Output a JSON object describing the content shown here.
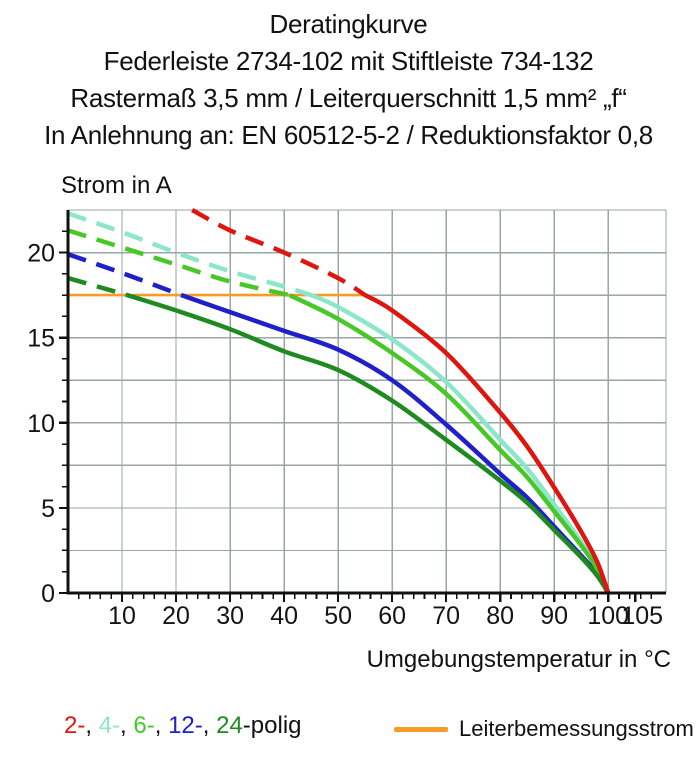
{
  "title": {
    "lines": [
      "Deratingkurve",
      "Federleiste 2734-102 mit Stiftleiste 734-132",
      "Rastermaß 3,5 mm / Leiterquerschnitt 1,5 mm² „f“",
      "In Anlehnung an: EN 60512-5-2 / Reduktionsfaktor 0,8"
    ]
  },
  "chart_data": {
    "type": "line",
    "title": "Deratingkurve",
    "xlabel": "Umgebungstemperatur in °C",
    "ylabel": "Strom in A",
    "xlim": [
      0,
      110.7
    ],
    "ylim": [
      0,
      22.5
    ],
    "grid": {
      "on": true,
      "x_step": 10,
      "y_step": 2.5
    },
    "x_ticks": {
      "major": [
        10,
        20,
        30,
        40,
        50,
        60,
        70,
        80,
        90,
        100,
        105
      ],
      "minor_step": 2,
      "minor_max": 110
    },
    "y_ticks": {
      "major": [
        0,
        5,
        10,
        15,
        20
      ],
      "minor_step": 1.25
    },
    "colors": {
      "grid": "#9AA5A5",
      "axis": "#111111",
      "text": "#141414"
    },
    "rated_line": {
      "label": "Leiterbemessungsstrom",
      "value": 17.5,
      "x_start": 0,
      "x_end": 55,
      "color": "#F59B28"
    },
    "series": [
      {
        "name": "4-polig",
        "color": "#8CE6C9",
        "dash_until": 45,
        "points": [
          [
            0,
            22.3
          ],
          [
            10,
            21.2
          ],
          [
            20,
            20.0
          ],
          [
            30,
            18.9
          ],
          [
            40,
            18.0
          ],
          [
            45,
            17.5
          ],
          [
            50,
            16.8
          ],
          [
            60,
            14.9
          ],
          [
            70,
            12.4
          ],
          [
            80,
            9.0
          ],
          [
            85,
            7.3
          ],
          [
            90,
            5.2
          ],
          [
            95,
            3.0
          ],
          [
            98,
            1.5
          ],
          [
            100,
            0
          ]
        ]
      },
      {
        "name": "12-polig",
        "color": "#2020C8",
        "dash_until": 21,
        "points": [
          [
            0,
            19.9
          ],
          [
            10,
            18.8
          ],
          [
            21,
            17.5
          ],
          [
            30,
            16.5
          ],
          [
            40,
            15.4
          ],
          [
            50,
            14.3
          ],
          [
            60,
            12.5
          ],
          [
            70,
            9.9
          ],
          [
            80,
            7.0
          ],
          [
            85,
            5.6
          ],
          [
            90,
            3.9
          ],
          [
            95,
            2.2
          ],
          [
            98,
            1.1
          ],
          [
            100,
            0
          ]
        ]
      },
      {
        "name": "6-polig",
        "color": "#48C828",
        "dash_until": 41,
        "points": [
          [
            0,
            21.3
          ],
          [
            10,
            20.3
          ],
          [
            20,
            19.3
          ],
          [
            30,
            18.3
          ],
          [
            41,
            17.5
          ],
          [
            50,
            16.1
          ],
          [
            60,
            14.1
          ],
          [
            70,
            11.7
          ],
          [
            80,
            8.4
          ],
          [
            85,
            6.8
          ],
          [
            90,
            4.8
          ],
          [
            95,
            2.8
          ],
          [
            98,
            1.4
          ],
          [
            100,
            0
          ]
        ]
      },
      {
        "name": "24-polig",
        "color": "#1F8A1F",
        "dash_until": 11,
        "points": [
          [
            0,
            18.5
          ],
          [
            11,
            17.5
          ],
          [
            20,
            16.6
          ],
          [
            30,
            15.5
          ],
          [
            40,
            14.2
          ],
          [
            50,
            13.1
          ],
          [
            60,
            11.3
          ],
          [
            70,
            9.0
          ],
          [
            80,
            6.6
          ],
          [
            85,
            5.3
          ],
          [
            90,
            3.7
          ],
          [
            95,
            2.1
          ],
          [
            98,
            1.0
          ],
          [
            100,
            0
          ]
        ]
      },
      {
        "name": "2-polig",
        "color": "#DE1610",
        "dash_until": 55,
        "points": [
          [
            23,
            22.5
          ],
          [
            30,
            21.3
          ],
          [
            40,
            20.0
          ],
          [
            50,
            18.5
          ],
          [
            55,
            17.5
          ],
          [
            60,
            16.6
          ],
          [
            70,
            14.1
          ],
          [
            80,
            10.6
          ],
          [
            85,
            8.6
          ],
          [
            90,
            6.2
          ],
          [
            95,
            3.6
          ],
          [
            98,
            1.8
          ],
          [
            100,
            0
          ]
        ]
      }
    ]
  },
  "legend": {
    "tokens": [
      {
        "text": "2-",
        "color": "#DE1610"
      },
      {
        "text": ", ",
        "color": "#111111"
      },
      {
        "text": "4-",
        "color": "#8CE6C9"
      },
      {
        "text": ", ",
        "color": "#111111"
      },
      {
        "text": "6-",
        "color": "#48C828"
      },
      {
        "text": ", ",
        "color": "#111111"
      },
      {
        "text": "12-",
        "color": "#2020C8"
      },
      {
        "text": ", ",
        "color": "#111111"
      },
      {
        "text": "24",
        "color": "#1F8A1F"
      },
      {
        "text": "-polig",
        "color": "#111111"
      }
    ]
  }
}
